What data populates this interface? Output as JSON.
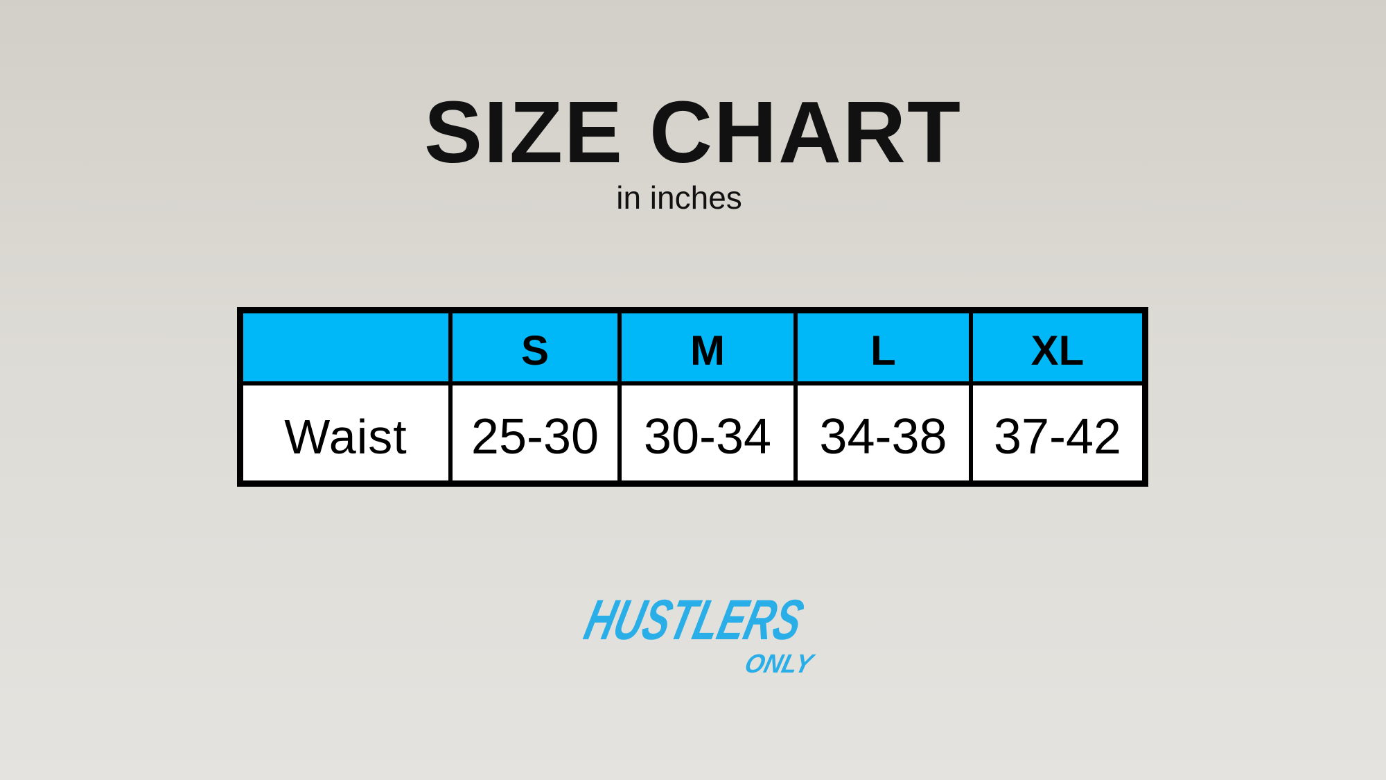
{
  "title": "SIZE CHART",
  "subtitle": "in inches",
  "table": {
    "header": [
      "",
      "S",
      "M",
      "L",
      "XL"
    ],
    "rows": [
      {
        "label": "Waist",
        "values": [
          "25-30",
          "30-34",
          "34-38",
          "37-42"
        ]
      }
    ]
  },
  "logo": {
    "main": "HUSTLERS",
    "sub": "ONLY",
    "color": "#29aee8"
  },
  "colors": {
    "header_bg": "#00b8f8",
    "border": "#000000"
  }
}
